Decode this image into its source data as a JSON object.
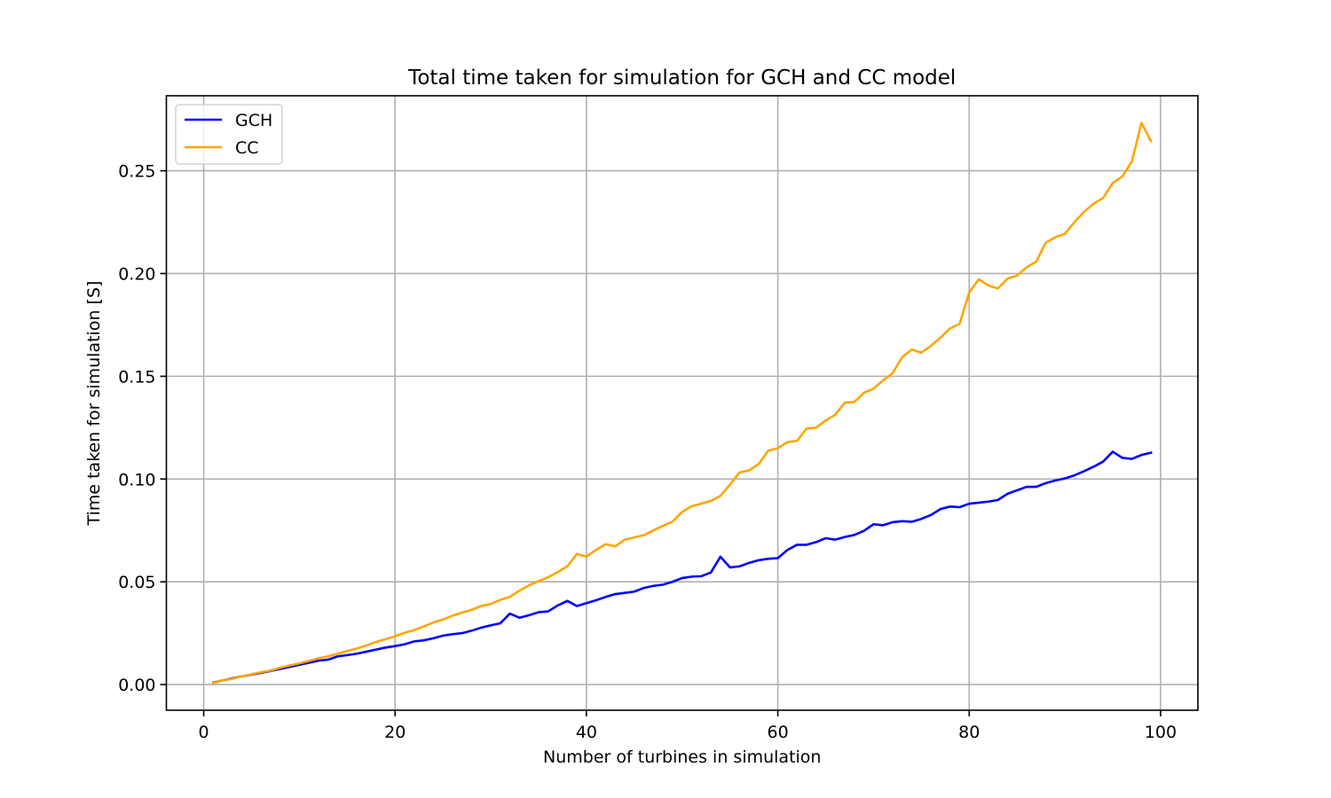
{
  "chart_data": {
    "type": "line",
    "title": "Total time taken for simulation for GCH and CC model",
    "xlabel": "Number of turbines in simulation",
    "ylabel": "Time taken for simulation [S]",
    "xlim": [
      -3.9,
      103.9
    ],
    "ylim": [
      -0.0125,
      0.2865
    ],
    "xticks": [
      0,
      20,
      40,
      60,
      80,
      100
    ],
    "xtick_labels": [
      "0",
      "20",
      "40",
      "60",
      "80",
      "100"
    ],
    "yticks": [
      0.0,
      0.05,
      0.1,
      0.15,
      0.2,
      0.25
    ],
    "ytick_labels": [
      "0.00",
      "0.05",
      "0.10",
      "0.15",
      "0.20",
      "0.25"
    ],
    "grid": true,
    "legend_position": "upper-left",
    "x": [
      1,
      2,
      3,
      4,
      5,
      6,
      7,
      8,
      9,
      10,
      11,
      12,
      13,
      14,
      15,
      16,
      17,
      18,
      19,
      20,
      21,
      22,
      23,
      24,
      25,
      26,
      27,
      28,
      29,
      30,
      31,
      32,
      33,
      34,
      35,
      36,
      37,
      38,
      39,
      40,
      41,
      42,
      43,
      44,
      45,
      46,
      47,
      48,
      49,
      50,
      51,
      52,
      53,
      54,
      55,
      56,
      57,
      58,
      59,
      60,
      61,
      62,
      63,
      64,
      65,
      66,
      67,
      68,
      69,
      70,
      71,
      72,
      73,
      74,
      75,
      76,
      77,
      78,
      79,
      80,
      81,
      82,
      83,
      84,
      85,
      86,
      87,
      88,
      89,
      90,
      91,
      92,
      93,
      94,
      95,
      96,
      97,
      98,
      99
    ],
    "series": [
      {
        "name": "GCH",
        "color": "#0000ff",
        "values": [
          0.001,
          0.002,
          0.003,
          0.004,
          0.0048,
          0.0057,
          0.0066,
          0.0076,
          0.0086,
          0.0096,
          0.0106,
          0.0116,
          0.0121,
          0.0137,
          0.0143,
          0.015,
          0.016,
          0.017,
          0.018,
          0.0187,
          0.0196,
          0.021,
          0.0215,
          0.0225,
          0.0238,
          0.0245,
          0.025,
          0.0262,
          0.0277,
          0.0288,
          0.0298,
          0.0345,
          0.0325,
          0.0337,
          0.0352,
          0.0356,
          0.0385,
          0.0407,
          0.0382,
          0.0396,
          0.041,
          0.0426,
          0.044,
          0.0446,
          0.0452,
          0.047,
          0.048,
          0.0486,
          0.05,
          0.0518,
          0.0525,
          0.0527,
          0.0545,
          0.0622,
          0.057,
          0.0575,
          0.0592,
          0.0605,
          0.0612,
          0.0615,
          0.0655,
          0.068,
          0.068,
          0.0693,
          0.0712,
          0.0705,
          0.0718,
          0.0728,
          0.0748,
          0.078,
          0.0775,
          0.079,
          0.0795,
          0.0792,
          0.0806,
          0.0825,
          0.0854,
          0.0866,
          0.0863,
          0.088,
          0.0885,
          0.089,
          0.0898,
          0.0928,
          0.0945,
          0.0962,
          0.0962,
          0.098,
          0.0993,
          0.1003,
          0.1018,
          0.1038,
          0.106,
          0.1085,
          0.1133,
          0.1103,
          0.1098,
          0.1117,
          0.1128
        ]
      },
      {
        "name": "CC",
        "color": "#ffa500",
        "values": [
          0.0008,
          0.002,
          0.0028,
          0.004,
          0.005,
          0.006,
          0.0068,
          0.0082,
          0.0093,
          0.0103,
          0.0115,
          0.0128,
          0.0137,
          0.015,
          0.0163,
          0.0175,
          0.019,
          0.0207,
          0.022,
          0.0235,
          0.0252,
          0.0265,
          0.0283,
          0.0302,
          0.0316,
          0.0335,
          0.035,
          0.0363,
          0.0382,
          0.0392,
          0.0412,
          0.0427,
          0.0457,
          0.0483,
          0.0503,
          0.0522,
          0.0547,
          0.0575,
          0.0635,
          0.0623,
          0.0655,
          0.0683,
          0.0672,
          0.0705,
          0.0716,
          0.0727,
          0.075,
          0.0772,
          0.0793,
          0.084,
          0.0868,
          0.088,
          0.0893,
          0.0918,
          0.0973,
          0.1032,
          0.1042,
          0.1073,
          0.1138,
          0.115,
          0.118,
          0.1185,
          0.1245,
          0.125,
          0.1285,
          0.1313,
          0.1372,
          0.1375,
          0.142,
          0.144,
          0.148,
          0.1515,
          0.1593,
          0.163,
          0.1615,
          0.1648,
          0.1688,
          0.1733,
          0.1755,
          0.1908,
          0.1972,
          0.1942,
          0.1927,
          0.1975,
          0.199,
          0.203,
          0.2058,
          0.215,
          0.2177,
          0.2193,
          0.225,
          0.23,
          0.234,
          0.2368,
          0.244,
          0.2472,
          0.2545,
          0.2733,
          0.2645
        ]
      }
    ]
  }
}
